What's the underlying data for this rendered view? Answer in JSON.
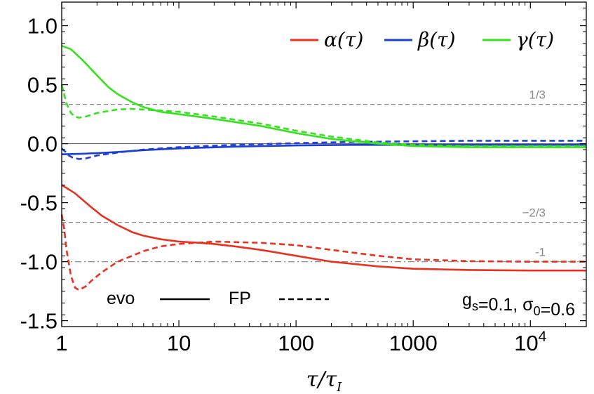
{
  "chart_data": {
    "type": "line",
    "xscale": "log",
    "xlim": [
      1,
      30000
    ],
    "ylim": [
      -1.55,
      1.2
    ],
    "xlabel": "τ/τ_I",
    "ylabel": "",
    "x_tick_labels": [
      "1",
      "10",
      "100",
      "1000",
      "10^4"
    ],
    "x_tick_values": [
      1,
      10,
      100,
      1000,
      10000
    ],
    "y_tick_labels": [
      "1.0",
      "0.5",
      "0.0",
      "-0.5",
      "-1.0",
      "-1.5"
    ],
    "y_tick_values": [
      1.0,
      0.5,
      0.0,
      -0.5,
      -1.0,
      -1.5
    ],
    "reference_lines": [
      {
        "label": "1/3",
        "y": 0.3333,
        "style": "dashed"
      },
      {
        "label": "−2/3",
        "y": -0.6667,
        "style": "dashed"
      },
      {
        "label": "-1",
        "y": -1.0,
        "style": "dashdot"
      }
    ],
    "legend": [
      {
        "label": "α(τ)",
        "color": "#e8311f"
      },
      {
        "label": "β(τ)",
        "color": "#1e3fd6"
      },
      {
        "label": "γ(τ)",
        "color": "#35e21d"
      }
    ],
    "line_styles": {
      "solid_label": "evo",
      "dashed_label": "FP"
    },
    "params_text": {
      "gs": "g_s=0.1",
      "sigma0": "σ_0=0.6"
    },
    "series": [
      {
        "name": "α evo",
        "color": "#e8311f",
        "dash": "solid",
        "x": [
          1,
          1.3,
          1.7,
          2.2,
          3,
          4,
          5,
          7,
          10,
          15,
          20,
          30,
          50,
          100,
          200,
          500,
          1000,
          3000,
          10000,
          30000
        ],
        "y": [
          -0.35,
          -0.42,
          -0.52,
          -0.61,
          -0.69,
          -0.75,
          -0.78,
          -0.81,
          -0.83,
          -0.84,
          -0.85,
          -0.87,
          -0.9,
          -0.95,
          -1.0,
          -1.04,
          -1.06,
          -1.07,
          -1.075,
          -1.075
        ]
      },
      {
        "name": "α FP",
        "color": "#e8311f",
        "dash": "dashed",
        "x": [
          1,
          1.05,
          1.1,
          1.2,
          1.3,
          1.4,
          1.6,
          1.8,
          2.2,
          3,
          4,
          5,
          7,
          10,
          20,
          50,
          100,
          200,
          500,
          1000,
          3000,
          10000,
          30000
        ],
        "y": [
          -0.6,
          -0.72,
          -0.9,
          -1.12,
          -1.22,
          -1.24,
          -1.21,
          -1.16,
          -1.09,
          -1.0,
          -0.95,
          -0.91,
          -0.87,
          -0.85,
          -0.83,
          -0.84,
          -0.86,
          -0.9,
          -0.95,
          -0.98,
          -0.995,
          -1.0,
          -1.0
        ]
      },
      {
        "name": "β evo",
        "color": "#1e3fd6",
        "dash": "solid",
        "x": [
          1,
          1.5,
          2,
          3,
          5,
          10,
          30,
          100,
          300,
          1000,
          3000,
          10000,
          30000
        ],
        "y": [
          -0.09,
          -0.085,
          -0.08,
          -0.07,
          -0.055,
          -0.04,
          -0.025,
          -0.015,
          -0.01,
          -0.01,
          -0.01,
          -0.01,
          -0.01
        ]
      },
      {
        "name": "β FP",
        "color": "#1e3fd6",
        "dash": "dashed",
        "x": [
          1,
          1.08,
          1.15,
          1.25,
          1.4,
          1.6,
          2,
          3,
          5,
          10,
          30,
          100,
          300,
          1000,
          3000,
          10000,
          30000
        ],
        "y": [
          -0.04,
          -0.07,
          -0.1,
          -0.12,
          -0.13,
          -0.125,
          -0.1,
          -0.075,
          -0.05,
          -0.03,
          -0.01,
          0.005,
          0.015,
          0.02,
          0.025,
          0.025,
          0.025
        ]
      },
      {
        "name": "γ evo",
        "color": "#35e21d",
        "dash": "solid",
        "x": [
          1,
          1.2,
          1.5,
          2,
          2.5,
          3,
          4,
          5,
          7,
          10,
          20,
          50,
          100,
          200,
          500,
          1000,
          3000,
          10000,
          30000
        ],
        "y": [
          0.83,
          0.8,
          0.71,
          0.58,
          0.48,
          0.42,
          0.35,
          0.31,
          0.27,
          0.25,
          0.21,
          0.15,
          0.09,
          0.04,
          0.0,
          -0.02,
          -0.03,
          -0.03,
          -0.03
        ]
      },
      {
        "name": "γ FP",
        "color": "#35e21d",
        "dash": "dashed",
        "x": [
          1,
          1.05,
          1.1,
          1.2,
          1.3,
          1.4,
          1.6,
          2,
          3,
          4,
          5,
          7,
          10,
          20,
          50,
          100,
          200,
          500,
          1000,
          3000,
          10000,
          30000
        ],
        "y": [
          0.5,
          0.42,
          0.34,
          0.26,
          0.23,
          0.22,
          0.23,
          0.26,
          0.29,
          0.295,
          0.29,
          0.28,
          0.27,
          0.23,
          0.17,
          0.11,
          0.06,
          0.01,
          -0.01,
          -0.02,
          -0.02,
          -0.02
        ]
      }
    ]
  }
}
